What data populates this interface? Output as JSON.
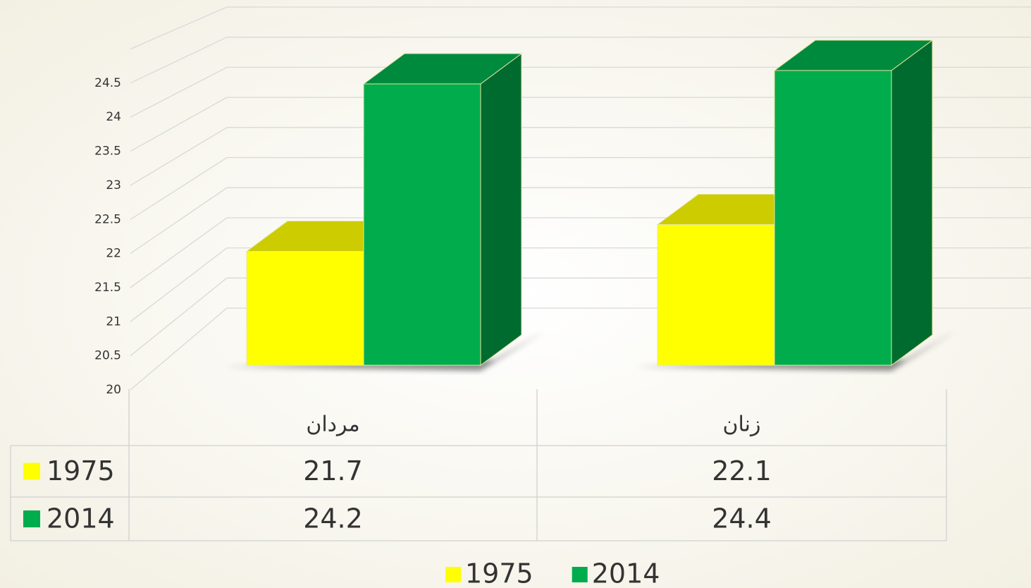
{
  "chart_data": {
    "type": "bar3d",
    "categories": [
      "مردان",
      "زنان"
    ],
    "series": [
      {
        "name": "1975",
        "color": "#ffff00",
        "values": [
          21.7,
          22.1
        ]
      },
      {
        "name": "2014",
        "color": "#00ac4c",
        "values": [
          24.2,
          24.4
        ]
      }
    ],
    "ylim": [
      20,
      25
    ],
    "yticks": [
      20,
      20.5,
      21,
      21.5,
      22,
      22.5,
      23,
      23.5,
      24,
      24.5
    ],
    "grid": true,
    "data_table": true,
    "legend": "bottom"
  }
}
